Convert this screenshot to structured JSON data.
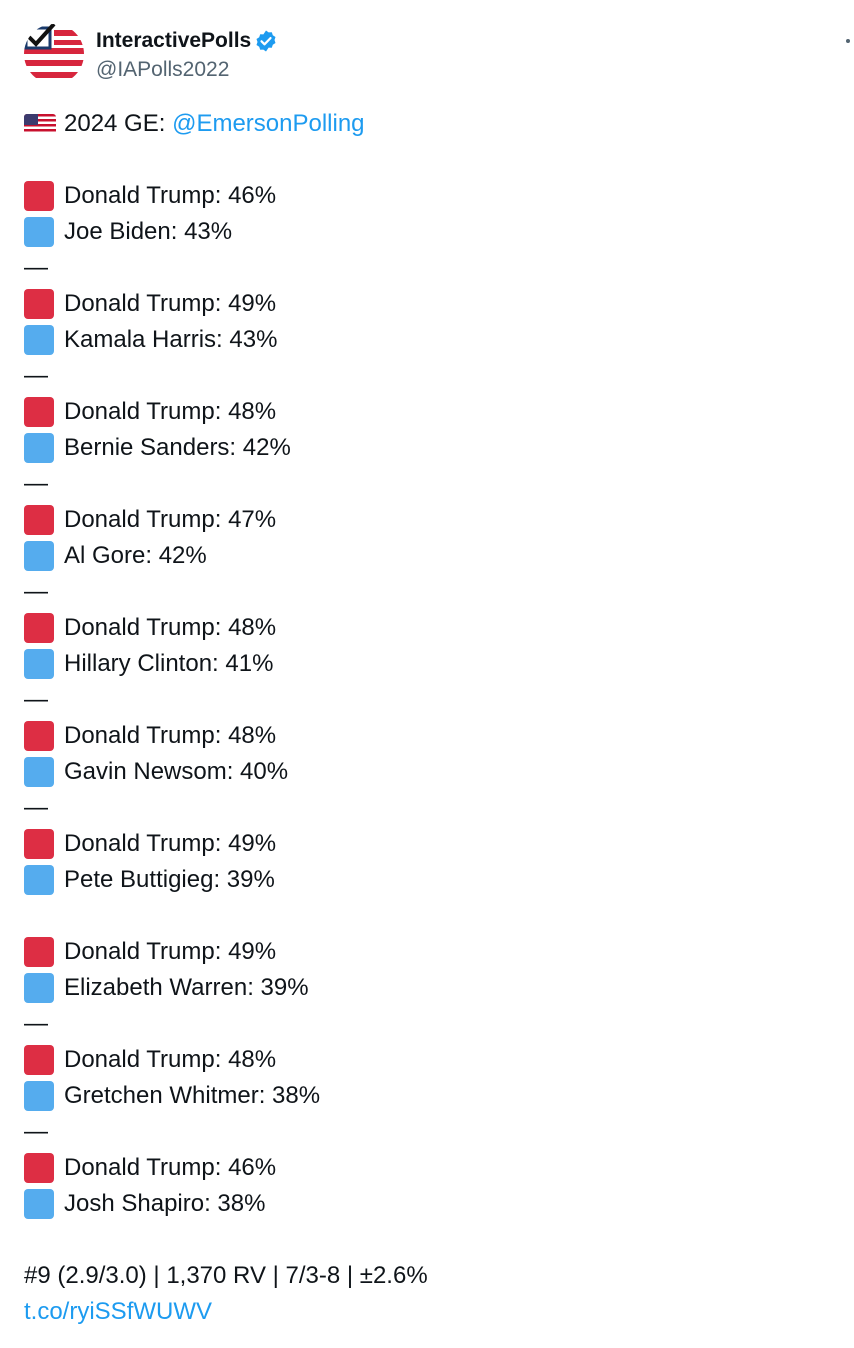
{
  "tweet": {
    "display_name": "InteractivePolls",
    "handle": "@IAPolls2022",
    "verified": true,
    "headline_prefix": "2024 GE: ",
    "headline_mention": "@EmersonPolling",
    "dash": "—",
    "matchups": [
      {
        "rep": "Donald Trump: 46%",
        "dem": "Joe Biden: 43%"
      },
      {
        "rep": "Donald Trump: 49%",
        "dem": "Kamala Harris: 43%"
      },
      {
        "rep": "Donald Trump: 48%",
        "dem": "Bernie Sanders: 42%"
      },
      {
        "rep": "Donald Trump: 47%",
        "dem": "Al Gore: 42%"
      },
      {
        "rep": "Donald Trump: 48%",
        "dem": "Hillary Clinton: 41%"
      },
      {
        "rep": "Donald Trump: 48%",
        "dem": "Gavin Newsom: 40%"
      },
      {
        "rep": "Donald Trump: 49%",
        "dem": "Pete Buttigieg: 39%"
      },
      {
        "rep": "Donald Trump: 49%",
        "dem": "Elizabeth Warren: 39%"
      },
      {
        "rep": "Donald Trump: 48%",
        "dem": "Gretchen Whitmer: 38%"
      },
      {
        "rep": "Donald Trump: 46%",
        "dem": "Josh Shapiro: 38%"
      }
    ],
    "footer": "#9 (2.9/3.0) | 1,370 RV | 7/3-8 | ±2.6%",
    "link": "t.co/ryiSSfWUWV"
  },
  "colors": {
    "rep_square": "#dd2e44",
    "dem_square": "#55acee",
    "link": "#1d9bf0",
    "handle": "#536471"
  }
}
